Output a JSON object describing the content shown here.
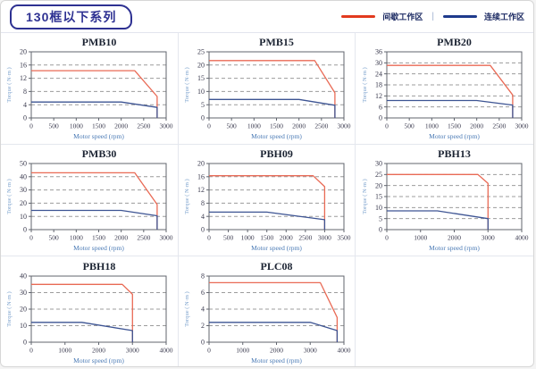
{
  "header": {
    "title": "130框以下系列",
    "legend": {
      "items": [
        {
          "label": "间歇工作区",
          "color": "#e23a1e"
        },
        {
          "label": "连续工作区",
          "color": "#1e3a8c"
        }
      ],
      "separator": "|"
    }
  },
  "chart_data": [
    {
      "type": "line",
      "title": "PMB10",
      "xlabel": "Motor speed (rpm)",
      "ylabel": "Torque ( N·m )",
      "xlim": [
        0,
        3000
      ],
      "xticks": [
        0,
        500,
        1000,
        1500,
        2000,
        2500,
        3000
      ],
      "ylim": [
        0,
        20
      ],
      "yticks": [
        0,
        4,
        8,
        12,
        16,
        20
      ],
      "grid": "horizontal-dashed",
      "legend_position": "none",
      "series": [
        {
          "name": "间歇工作区",
          "color": "#e96a55",
          "points": [
            [
              0,
              14.3
            ],
            [
              2300,
              14.3
            ],
            [
              2800,
              6.5
            ],
            [
              2800,
              0
            ]
          ]
        },
        {
          "name": "连续工作区",
          "color": "#3d5493",
          "points": [
            [
              0,
              4.8
            ],
            [
              2000,
              4.8
            ],
            [
              2800,
              3.2
            ],
            [
              2800,
              0
            ]
          ]
        }
      ]
    },
    {
      "type": "line",
      "title": "PMB15",
      "xlabel": "Motor speed (rpm)",
      "ylabel": "Torque ( N·m )",
      "xlim": [
        0,
        3000
      ],
      "xticks": [
        0,
        500,
        1000,
        1500,
        2000,
        2500,
        3000
      ],
      "ylim": [
        0,
        25
      ],
      "yticks": [
        0,
        5,
        10,
        15,
        20,
        25
      ],
      "grid": "horizontal-dashed",
      "legend_position": "none",
      "series": [
        {
          "name": "间歇工作区",
          "color": "#e96a55",
          "points": [
            [
              0,
              21.7
            ],
            [
              2350,
              21.7
            ],
            [
              2800,
              9.5
            ],
            [
              2800,
              0
            ]
          ]
        },
        {
          "name": "连续工作区",
          "color": "#3d5493",
          "points": [
            [
              0,
              7
            ],
            [
              2000,
              7
            ],
            [
              2800,
              4.8
            ],
            [
              2800,
              0
            ]
          ]
        }
      ]
    },
    {
      "type": "line",
      "title": "PMB20",
      "xlabel": "Motor speed (rpm)",
      "ylabel": "Torque ( N·m )",
      "xlim": [
        0,
        3000
      ],
      "xticks": [
        0,
        500,
        1000,
        1500,
        2000,
        2500,
        3000
      ],
      "ylim": [
        0,
        36
      ],
      "yticks": [
        0,
        6,
        12,
        18,
        24,
        30,
        36
      ],
      "grid": "horizontal-dashed",
      "legend_position": "none",
      "series": [
        {
          "name": "间歇工作区",
          "color": "#e96a55",
          "points": [
            [
              0,
              28.6
            ],
            [
              2300,
              28.6
            ],
            [
              2800,
              12.5
            ],
            [
              2800,
              0
            ]
          ]
        },
        {
          "name": "连续工作区",
          "color": "#3d5493",
          "points": [
            [
              0,
              9.5
            ],
            [
              2000,
              9.5
            ],
            [
              2800,
              7
            ],
            [
              2800,
              0
            ]
          ]
        }
      ]
    },
    {
      "type": "line",
      "title": "PMB30",
      "xlabel": "Motor speed (rpm)",
      "ylabel": "Torque ( N·m )",
      "xlim": [
        0,
        3000
      ],
      "xticks": [
        0,
        500,
        1000,
        1500,
        2000,
        2500,
        3000
      ],
      "ylim": [
        0,
        50
      ],
      "yticks": [
        0,
        10,
        20,
        30,
        40,
        50
      ],
      "grid": "horizontal-dashed",
      "legend_position": "none",
      "series": [
        {
          "name": "间歇工作区",
          "color": "#e96a55",
          "points": [
            [
              0,
              43
            ],
            [
              2300,
              43
            ],
            [
              2800,
              19
            ],
            [
              2800,
              0
            ]
          ]
        },
        {
          "name": "连续工作区",
          "color": "#3d5493",
          "points": [
            [
              0,
              14.5
            ],
            [
              2000,
              14.5
            ],
            [
              2800,
              10.5
            ],
            [
              2800,
              0
            ]
          ]
        }
      ]
    },
    {
      "type": "line",
      "title": "PBH09",
      "xlabel": "Motor speed (rpm)",
      "ylabel": "Torque ( N·m )",
      "xlim": [
        0,
        3500
      ],
      "xticks": [
        0,
        500,
        1000,
        1500,
        2000,
        2500,
        3000,
        3500
      ],
      "ylim": [
        0,
        20
      ],
      "yticks": [
        0,
        4,
        8,
        12,
        16,
        20
      ],
      "grid": "horizontal-dashed",
      "legend_position": "none",
      "series": [
        {
          "name": "间歇工作区",
          "color": "#e96a55",
          "points": [
            [
              0,
              16.3
            ],
            [
              2700,
              16.3
            ],
            [
              3000,
              13
            ],
            [
              3000,
              0
            ]
          ]
        },
        {
          "name": "连续工作区",
          "color": "#3d5493",
          "points": [
            [
              0,
              5.3
            ],
            [
              1500,
              5.3
            ],
            [
              3000,
              3
            ],
            [
              3000,
              0
            ]
          ]
        }
      ]
    },
    {
      "type": "line",
      "title": "PBH13",
      "xlabel": "Motor speed (rpm)",
      "ylabel": "Torque ( N·m )",
      "xlim": [
        0,
        4000
      ],
      "xticks": [
        0,
        1000,
        2000,
        3000,
        4000
      ],
      "ylim": [
        0,
        30
      ],
      "yticks": [
        0,
        5,
        10,
        15,
        20,
        25,
        30
      ],
      "grid": "horizontal-dashed",
      "legend_position": "none",
      "series": [
        {
          "name": "间歇工作区",
          "color": "#e96a55",
          "points": [
            [
              0,
              25
            ],
            [
              2700,
              25
            ],
            [
              3000,
              21
            ],
            [
              3000,
              0
            ]
          ]
        },
        {
          "name": "连续工作区",
          "color": "#3d5493",
          "points": [
            [
              0,
              8.5
            ],
            [
              1500,
              8.5
            ],
            [
              3000,
              5
            ],
            [
              3000,
              0
            ]
          ]
        }
      ]
    },
    {
      "type": "line",
      "title": "PBH18",
      "xlabel": "Motor speed (rpm)",
      "ylabel": "Torque ( N·m )",
      "xlim": [
        0,
        4000
      ],
      "xticks": [
        0,
        1000,
        2000,
        3000,
        4000
      ],
      "ylim": [
        0,
        40
      ],
      "yticks": [
        0,
        10,
        20,
        30,
        40
      ],
      "grid": "horizontal-dashed",
      "legend_position": "none",
      "series": [
        {
          "name": "间歇工作区",
          "color": "#e96a55",
          "points": [
            [
              0,
              35
            ],
            [
              2700,
              35
            ],
            [
              3000,
              29
            ],
            [
              3000,
              0
            ]
          ]
        },
        {
          "name": "连续工作区",
          "color": "#3d5493",
          "points": [
            [
              0,
              12
            ],
            [
              1500,
              12
            ],
            [
              3000,
              7
            ],
            [
              3000,
              0
            ]
          ]
        }
      ]
    },
    {
      "type": "line",
      "title": "PLC08",
      "xlabel": "Motor speed (rpm)",
      "ylabel": "Torque ( N·m )",
      "xlim": [
        0,
        4000
      ],
      "xticks": [
        0,
        1000,
        2000,
        3000,
        4000
      ],
      "ylim": [
        0,
        8
      ],
      "yticks": [
        0,
        2,
        4,
        6,
        8
      ],
      "grid": "horizontal-dashed",
      "legend_position": "none",
      "series": [
        {
          "name": "间歇工作区",
          "color": "#e96a55",
          "points": [
            [
              0,
              7.2
            ],
            [
              3300,
              7.2
            ],
            [
              3800,
              3
            ],
            [
              3800,
              0
            ]
          ]
        },
        {
          "name": "连续工作区",
          "color": "#3d5493",
          "points": [
            [
              0,
              2.4
            ],
            [
              3000,
              2.4
            ],
            [
              3800,
              1.4
            ],
            [
              3800,
              0
            ]
          ]
        }
      ]
    }
  ]
}
